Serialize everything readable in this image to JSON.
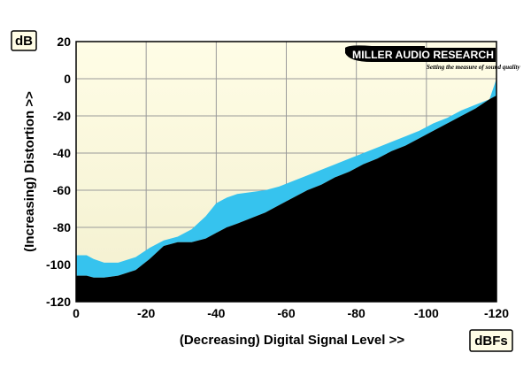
{
  "chart_data": {
    "type": "area",
    "ylabel": "(Increasing) Distortion >>",
    "xlabel": "(Decreasing) Digital Signal Level >>",
    "y_unit": "dB",
    "x_unit": "dBFs",
    "xlim": [
      0,
      -120
    ],
    "ylim": [
      -120,
      20
    ],
    "x_ticks": [
      0,
      -20,
      -40,
      -60,
      -80,
      -100,
      -120
    ],
    "x_tick_labels": [
      "0",
      "-20",
      "-40",
      "-60",
      "-80",
      "-100",
      "-120"
    ],
    "y_ticks": [
      20,
      0,
      -20,
      -40,
      -60,
      -80,
      -100,
      -120
    ],
    "y_tick_labels": [
      "20",
      "0",
      "-20",
      "-40",
      "-60",
      "-80",
      "-100",
      "-120"
    ],
    "grid": true,
    "colors": {
      "plot_bg_top": "#fffde6",
      "plot_bg_bottom": "#f3f0cf",
      "grid": "#9a9a9a",
      "band": "#36c3ee",
      "floor": "#000000"
    },
    "series": [
      {
        "role": "upper",
        "x": [
          0,
          -3,
          -5,
          -8,
          -12,
          -17,
          -21,
          -25,
          -29,
          -33,
          -37,
          -40,
          -43,
          -46,
          -50,
          -54,
          -58,
          -62,
          -66,
          -70,
          -74,
          -78,
          -82,
          -86,
          -90,
          -94,
          -98,
          -102,
          -106,
          -110,
          -114,
          -118,
          -120
        ],
        "values": [
          -95,
          -95,
          -97,
          -99,
          -99,
          -96,
          -91,
          -87,
          -85,
          -81,
          -74,
          -67,
          -64,
          -62,
          -61,
          -60,
          -58,
          -55,
          -52,
          -49,
          -46,
          -43,
          -40,
          -37,
          -34,
          -31,
          -28,
          -24,
          -21,
          -17,
          -14,
          -11,
          -9
        ]
      },
      {
        "role": "lower",
        "x": [
          0,
          -3,
          -5,
          -8,
          -12,
          -17,
          -21,
          -25,
          -29,
          -33,
          -37,
          -40,
          -43,
          -46,
          -50,
          -54,
          -58,
          -62,
          -66,
          -70,
          -74,
          -78,
          -82,
          -86,
          -90,
          -94,
          -98,
          -102,
          -106,
          -110,
          -114,
          -118,
          -120
        ],
        "values": [
          -106,
          -106,
          -107,
          -107,
          -106,
          -103,
          -97,
          -90,
          -88,
          -88,
          -86,
          -83,
          -80,
          -78,
          -75,
          -72,
          -68,
          -64,
          -60,
          -57,
          -53,
          -50,
          -46,
          -43,
          -39,
          -36,
          -32,
          -28,
          -24,
          -20,
          -16,
          -11,
          -9
        ]
      },
      {
        "role": "upper-end",
        "x": [
          -120
        ],
        "values": [
          0
        ]
      }
    ]
  },
  "logo": {
    "main": "MILLER AUDIO RESEARCH",
    "tagline": "Setting the measure of sound quality"
  }
}
